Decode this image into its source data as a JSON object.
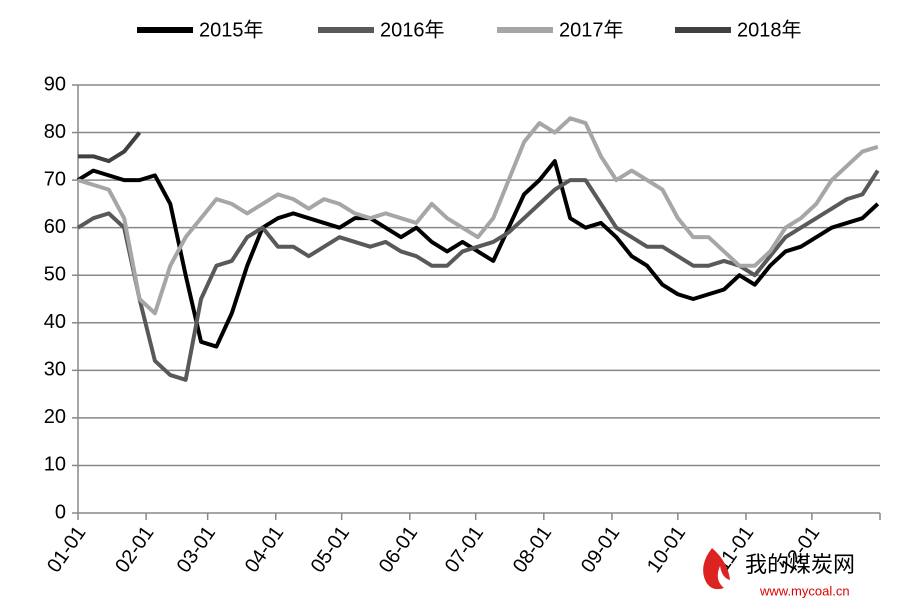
{
  "chart_data": {
    "type": "line",
    "x": [
      0,
      7,
      14,
      21,
      28,
      35,
      42,
      49,
      56,
      63,
      70,
      77,
      84,
      91,
      98,
      105,
      112,
      119,
      126,
      133,
      140,
      147,
      154,
      161,
      168,
      175,
      182,
      189,
      196,
      203,
      210,
      217,
      224,
      231,
      238,
      245,
      252,
      259,
      266,
      273,
      280,
      287,
      294,
      301,
      308,
      315,
      322,
      329,
      336,
      343,
      350,
      357,
      364
    ],
    "series": [
      {
        "name": "2015年",
        "color": "#000000",
        "values": [
          70,
          72,
          71,
          70,
          70,
          71,
          65,
          50,
          36,
          35,
          42,
          52,
          60,
          62,
          63,
          62,
          61,
          60,
          62,
          62,
          60,
          58,
          60,
          57,
          55,
          57,
          55,
          53,
          60,
          67,
          70,
          74,
          62,
          60,
          61,
          58,
          54,
          52,
          48,
          46,
          45,
          46,
          47,
          50,
          48,
          52,
          55,
          56,
          58,
          60,
          61,
          62,
          65
        ]
      },
      {
        "name": "2016年",
        "color": "#595959",
        "values": [
          60,
          62,
          63,
          60,
          45,
          32,
          29,
          28,
          45,
          52,
          53,
          58,
          60,
          56,
          56,
          54,
          56,
          58,
          57,
          56,
          57,
          55,
          54,
          52,
          52,
          55,
          56,
          57,
          59,
          62,
          65,
          68,
          70,
          70,
          65,
          60,
          58,
          56,
          56,
          54,
          52,
          52,
          53,
          52,
          50,
          54,
          58,
          60,
          62,
          64,
          66,
          67,
          72
        ]
      },
      {
        "name": "2017年",
        "color": "#a6a6a6",
        "values": [
          70,
          69,
          68,
          62,
          45,
          42,
          52,
          58,
          62,
          66,
          65,
          63,
          65,
          67,
          66,
          64,
          66,
          65,
          63,
          62,
          63,
          62,
          61,
          65,
          62,
          60,
          58,
          62,
          70,
          78,
          82,
          80,
          83,
          82,
          75,
          70,
          72,
          70,
          68,
          62,
          58,
          58,
          55,
          52,
          52,
          55,
          60,
          62,
          65,
          70,
          73,
          76,
          77
        ]
      },
      {
        "name": "2018年",
        "color": "#404040",
        "values": [
          75,
          75,
          74,
          76,
          80,
          null,
          null,
          null,
          null,
          null,
          null,
          null,
          null,
          null,
          null,
          null,
          null,
          null,
          null,
          null,
          null,
          null,
          null,
          null,
          null,
          null,
          null,
          null,
          null,
          null,
          null,
          null,
          null,
          null,
          null,
          null,
          null,
          null,
          null,
          null,
          null,
          null,
          null,
          null,
          null,
          null,
          null,
          null,
          null,
          null,
          null,
          null,
          null
        ]
      }
    ],
    "xlim": [
      0,
      365
    ],
    "xticks": [
      {
        "value": 0,
        "label": "01-01"
      },
      {
        "value": 31,
        "label": "02-01"
      },
      {
        "value": 59,
        "label": "03-01"
      },
      {
        "value": 90,
        "label": "04-01"
      },
      {
        "value": 120,
        "label": "05-01"
      },
      {
        "value": 151,
        "label": "06-01"
      },
      {
        "value": 181,
        "label": "07-01"
      },
      {
        "value": 212,
        "label": "08-01"
      },
      {
        "value": 243,
        "label": "09-01"
      },
      {
        "value": 273,
        "label": "10-01"
      },
      {
        "value": 304,
        "label": "11-01"
      },
      {
        "value": 334,
        "label": "12-01"
      }
    ],
    "ylim": [
      0,
      90
    ],
    "yticks": [
      0,
      10,
      20,
      30,
      40,
      50,
      60,
      70,
      80,
      90
    ],
    "grid": true,
    "legend": "top",
    "watermark": {
      "name": "我的煤炭网",
      "url": "www.mycoal.cn"
    }
  }
}
